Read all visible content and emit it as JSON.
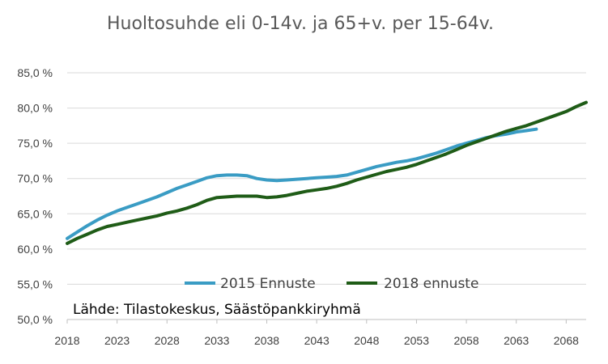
{
  "chart_data": {
    "type": "line",
    "title": "Huoltosuhde eli 0-14v. ja 65+v. per 15-64v.",
    "source_note": "Lähde: Tilastokeskus, Säästöpankkiryhmä",
    "xlim": [
      2018,
      2070
    ],
    "ylim": [
      50,
      85
    ],
    "x_ticks": [
      2018,
      2023,
      2028,
      2033,
      2038,
      2043,
      2048,
      2053,
      2058,
      2063,
      2068
    ],
    "x_tick_labels": [
      "2018",
      "2023",
      "2028",
      "2033",
      "2038",
      "2043",
      "2048",
      "2053",
      "2058",
      "2063",
      "2068"
    ],
    "y_ticks": [
      50,
      55,
      60,
      65,
      70,
      75,
      80,
      85
    ],
    "y_tick_labels": [
      "50,0 %",
      "55,0 %",
      "60,0 %",
      "65,0 %",
      "70,0 %",
      "75,0 %",
      "80,0 %",
      "85,0 %"
    ],
    "grid": "horizontal",
    "legend_position": "bottom-center",
    "series": [
      {
        "name": "2015 Ennuste",
        "color": "#3a9cc4",
        "x": [
          2018,
          2019,
          2020,
          2021,
          2022,
          2023,
          2024,
          2025,
          2026,
          2027,
          2028,
          2029,
          2030,
          2031,
          2032,
          2033,
          2034,
          2035,
          2036,
          2037,
          2038,
          2039,
          2040,
          2041,
          2042,
          2043,
          2044,
          2045,
          2046,
          2047,
          2048,
          2049,
          2050,
          2051,
          2052,
          2053,
          2054,
          2055,
          2056,
          2057,
          2058,
          2059,
          2060,
          2061,
          2062,
          2063,
          2064,
          2065
        ],
        "values": [
          61.5,
          62.4,
          63.3,
          64.1,
          64.8,
          65.4,
          65.9,
          66.4,
          66.9,
          67.4,
          68.0,
          68.6,
          69.1,
          69.6,
          70.1,
          70.4,
          70.5,
          70.5,
          70.4,
          70.0,
          69.8,
          69.7,
          69.8,
          69.9,
          70.0,
          70.1,
          70.2,
          70.3,
          70.5,
          70.9,
          71.3,
          71.7,
          72.0,
          72.3,
          72.5,
          72.8,
          73.2,
          73.6,
          74.1,
          74.6,
          75.0,
          75.4,
          75.8,
          76.1,
          76.3,
          76.6,
          76.8,
          77.0
        ]
      },
      {
        "name": "2018 ennuste",
        "color": "#1f5c17",
        "x": [
          2018,
          2019,
          2020,
          2021,
          2022,
          2023,
          2024,
          2025,
          2026,
          2027,
          2028,
          2029,
          2030,
          2031,
          2032,
          2033,
          2034,
          2035,
          2036,
          2037,
          2038,
          2039,
          2040,
          2041,
          2042,
          2043,
          2044,
          2045,
          2046,
          2047,
          2048,
          2049,
          2050,
          2051,
          2052,
          2053,
          2054,
          2055,
          2056,
          2057,
          2058,
          2059,
          2060,
          2061,
          2062,
          2063,
          2064,
          2065,
          2066,
          2067,
          2068,
          2069,
          2070
        ],
        "values": [
          60.8,
          61.5,
          62.1,
          62.7,
          63.2,
          63.5,
          63.8,
          64.1,
          64.4,
          64.7,
          65.1,
          65.4,
          65.8,
          66.3,
          66.9,
          67.3,
          67.4,
          67.5,
          67.5,
          67.5,
          67.3,
          67.4,
          67.6,
          67.9,
          68.2,
          68.4,
          68.6,
          68.9,
          69.3,
          69.8,
          70.2,
          70.6,
          71.0,
          71.3,
          71.6,
          72.0,
          72.5,
          73.0,
          73.5,
          74.1,
          74.7,
          75.2,
          75.7,
          76.2,
          76.7,
          77.1,
          77.5,
          78.0,
          78.5,
          79.0,
          79.5,
          80.2,
          80.8
        ]
      }
    ]
  }
}
